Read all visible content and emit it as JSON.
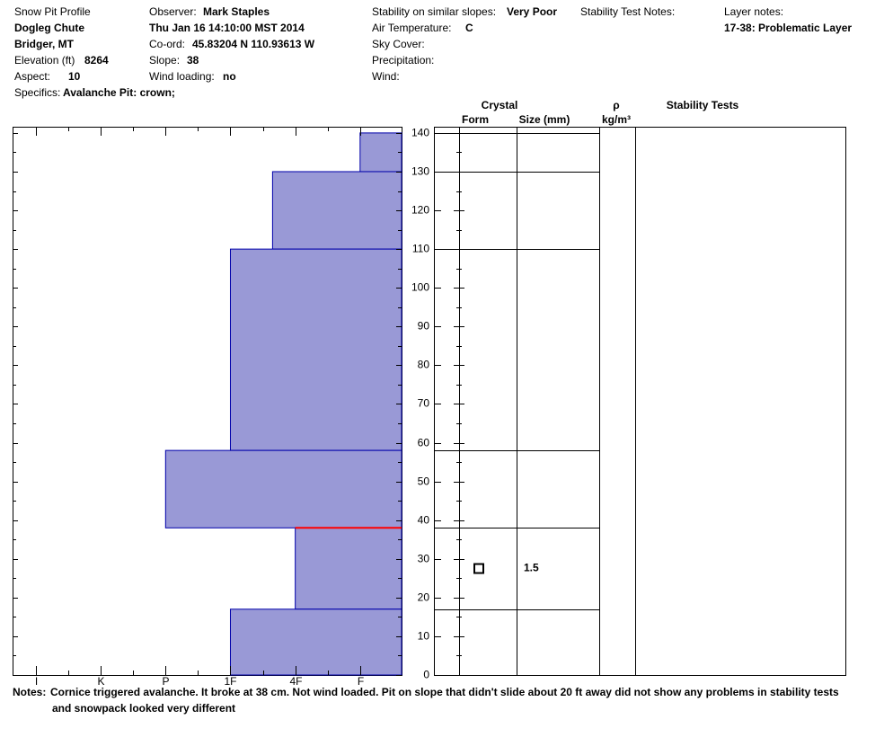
{
  "header": {
    "col1": [
      {
        "text": "Snow Pit Profile"
      },
      {
        "value": "Dogleg Chute"
      },
      {
        "value": "Bridger, MT"
      },
      {
        "label": "Elevation (ft)",
        "value": "8264"
      },
      {
        "label": "Aspect:",
        "value": "10"
      },
      {
        "label": "Specifics:",
        "value": "Avalanche Pit: crown;"
      }
    ],
    "col2": [
      {
        "label": "Observer:",
        "value": "Mark Staples"
      },
      {
        "value": "Thu Jan 16 14:10:00 MST 2014"
      },
      {
        "label": "Co-ord:",
        "value": "45.83204 N 110.93613 W"
      },
      {
        "label": "Slope:",
        "value": "38"
      },
      {
        "label": "Wind loading:",
        "value": "no"
      }
    ],
    "col3": [
      {
        "label": "Stability on similar slopes:",
        "value": "Very Poor"
      },
      {
        "label": "Air Temperature:",
        "value": "C"
      },
      {
        "label": "Sky Cover:"
      },
      {
        "label": "Precipitation:"
      },
      {
        "label": "Wind:"
      }
    ],
    "col4": [
      {
        "label": "Stability Test Notes:"
      }
    ],
    "col5": [
      {
        "label": "Layer notes:"
      },
      {
        "value": "17-38: Problematic Layer"
      }
    ]
  },
  "columns": {
    "crystal": "Crystal",
    "form": "Form",
    "size": "Size (mm)",
    "rho": "ρ",
    "density_unit": "kg/m³",
    "stability": "Stability Tests"
  },
  "notes": {
    "label": "Notes:",
    "lines": [
      "Cornice triggered avalanche. It broke at 38 cm. Not wind loaded. Pit on slope that didn't slide about 20 ft away did not show any problems in stability tests",
      "and snowpack looked very different"
    ]
  },
  "chart_data": {
    "type": "snowpit",
    "xlim": [
      6.36,
      0.36
    ],
    "xticks": [
      {
        "value": 6,
        "label": "I"
      },
      {
        "value": 5,
        "label": "K"
      },
      {
        "value": 4,
        "label": "P"
      },
      {
        "value": 3,
        "label": "1F"
      },
      {
        "value": 2,
        "label": "4F"
      },
      {
        "value": 1,
        "label": "F"
      }
    ],
    "xminorticks": [
      5.5,
      4.5,
      3.5,
      2.5,
      1.5
    ],
    "ylim": [
      0,
      141.6
    ],
    "yticks": [
      0,
      10,
      20,
      30,
      40,
      50,
      60,
      70,
      80,
      90,
      100,
      110,
      120,
      130,
      140
    ],
    "yminorticks": [
      5,
      15,
      25,
      35,
      45,
      55,
      65,
      75,
      85,
      95,
      105,
      115,
      125,
      135
    ],
    "color": "#9999d6",
    "layers": [
      {
        "bottom": 130,
        "top": 140,
        "hardness": 1
      },
      {
        "bottom": 110,
        "top": 130,
        "hardness": 2.35
      },
      {
        "bottom": 58,
        "top": 110,
        "hardness": 3
      },
      {
        "bottom": 38,
        "top": 58,
        "hardness": 4
      },
      {
        "bottom": 17,
        "top": 38,
        "hardness": 2,
        "size": 1.5
      },
      {
        "bottom": 0,
        "top": 17,
        "hardness": 3
      }
    ],
    "problem_layer_top": 38
  }
}
